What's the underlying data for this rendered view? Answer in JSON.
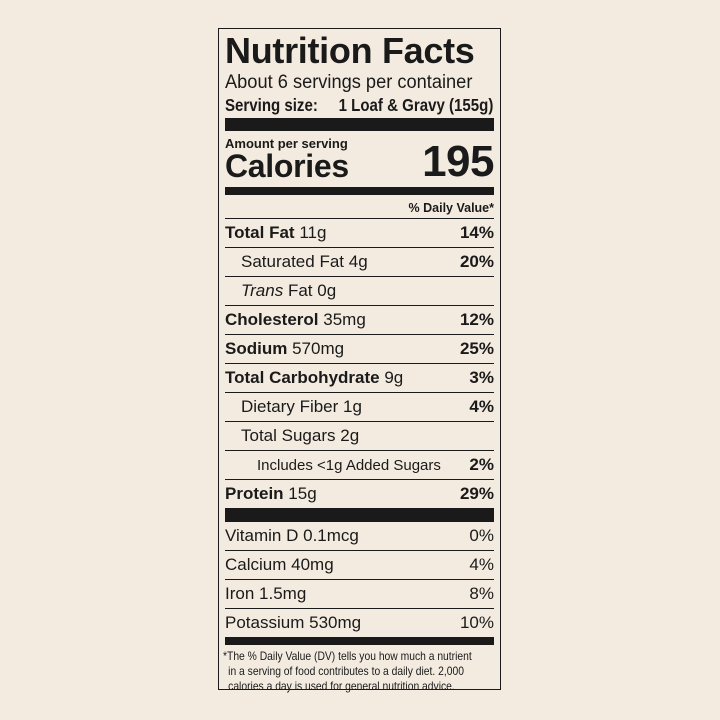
{
  "title": "Nutrition Facts",
  "servings_per_container": "About 6 servings per container",
  "serving_size_label": "Serving size:",
  "serving_size_value": "1 Loaf & Gravy (155g)",
  "amount_per_serving": "Amount per serving",
  "calories_label": "Calories",
  "calories_value": "195",
  "daily_value_header": "% Daily Value*",
  "nutrients": [
    {
      "name": "Total Fat",
      "amount": "11g",
      "dv": "14%"
    },
    {
      "name": "Saturated Fat",
      "amount": "4g",
      "dv": "20%"
    },
    {
      "name": "Trans",
      "name_rest": "Fat",
      "amount": "0g",
      "dv": ""
    },
    {
      "name": "Cholesterol",
      "amount": "35mg",
      "dv": "12%"
    },
    {
      "name": "Sodium",
      "amount": "570mg",
      "dv": "25%"
    },
    {
      "name": "Total Carbohydrate",
      "amount": "9g",
      "dv": "3%"
    },
    {
      "name": "Dietary Fiber",
      "amount": "1g",
      "dv": "4%"
    },
    {
      "name": "Total Sugars",
      "amount": "2g",
      "dv": ""
    },
    {
      "name": "Includes <1g Added Sugars",
      "amount": "",
      "dv": "2%"
    },
    {
      "name": "Protein",
      "amount": "15g",
      "dv": "29%"
    }
  ],
  "vitamins": [
    {
      "name": "Vitamin D",
      "amount": "0.1mcg",
      "dv": "0%"
    },
    {
      "name": "Calcium",
      "amount": "40mg",
      "dv": "4%"
    },
    {
      "name": "Iron",
      "amount": "1.5mg",
      "dv": "8%"
    },
    {
      "name": "Potassium",
      "amount": "530mg",
      "dv": "10%"
    }
  ],
  "footnote": {
    "line1": "*The % Daily Value (DV) tells you how much a nutrient",
    "line2": "in a serving of food contributes to a daily diet. 2,000",
    "line3": "calories a day is used for general nutrition advice."
  }
}
